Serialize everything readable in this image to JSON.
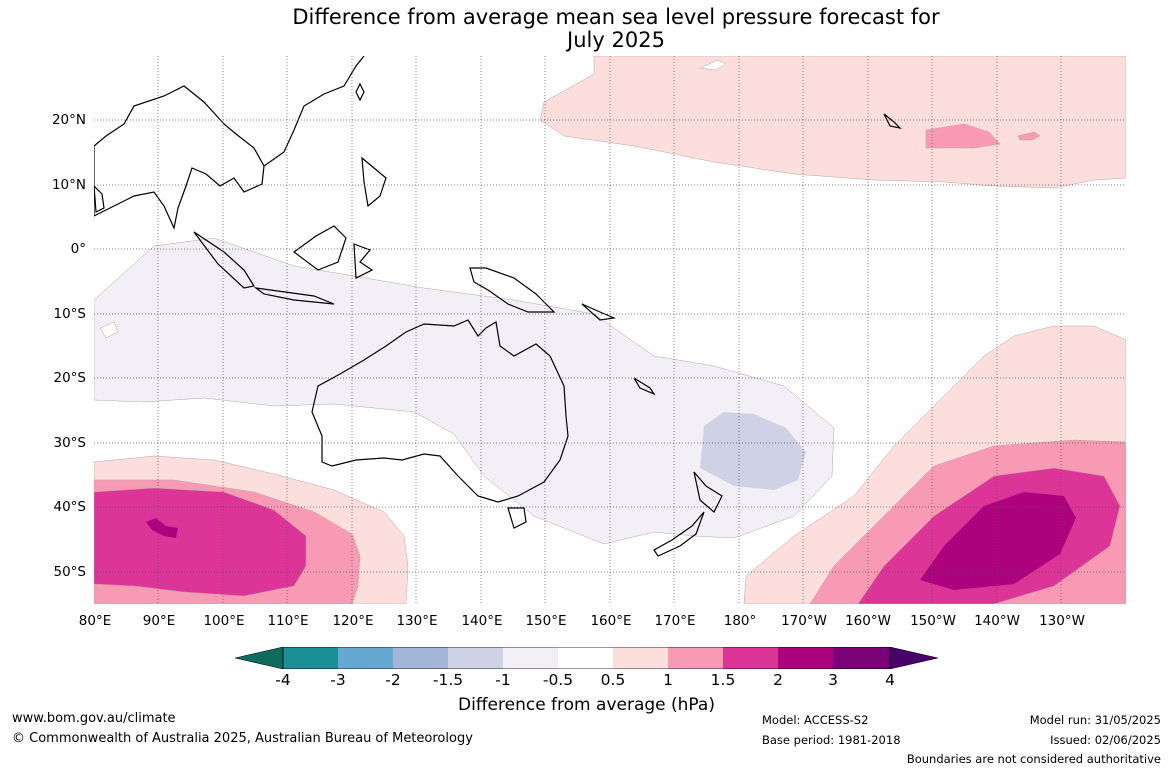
{
  "title": {
    "line1": "Difference from average mean sea level pressure forecast for",
    "line2": "July 2025"
  },
  "map": {
    "lat_labels": [
      "20°N",
      "10°N",
      "0°",
      "10°S",
      "20°S",
      "30°S",
      "40°S",
      "50°S"
    ],
    "lon_labels": [
      "80°E",
      "90°E",
      "100°E",
      "110°E",
      "120°E",
      "130°E",
      "140°E",
      "150°E",
      "160°E",
      "170°E",
      "180°",
      "170°W",
      "160°W",
      "150°W",
      "140°W",
      "130°W"
    ],
    "extent": {
      "lon_min": 80,
      "lon_max": 240,
      "lat_min": -55,
      "lat_max": 30
    },
    "colors": {
      "neg4": "#0e6b5e",
      "neg3": "#1a9096",
      "neg2": "#66a8d1",
      "neg1_5": "#a3b6d8",
      "neg1": "#cfd1e5",
      "neg0_5": "#f3eff6",
      "zero": "#ffffff",
      "pos0_5": "#fcdedd",
      "pos1": "#f99ab4",
      "pos1_5": "#dd3597",
      "pos2": "#ae017e",
      "pos3": "#7a0177",
      "pos4": "#49006a",
      "coast": "#000000",
      "border": "#888888",
      "grid": "#555555"
    }
  },
  "colorbar": {
    "ticks": [
      "-4",
      "-3",
      "-2",
      "-1.5",
      "-1",
      "-0.5",
      "0.5",
      "1",
      "1.5",
      "2",
      "3",
      "4"
    ],
    "label": "Difference from average (hPa)"
  },
  "footer": {
    "url": "www.bom.gov.au/climate",
    "copyright": "© Commonwealth of Australia 2025, Australian Bureau of Meteorology",
    "model": "Model: ACCESS-S2",
    "base_period": "Base period: 1981-2018",
    "model_run": "Model run: 31/05/2025",
    "issued": "Issued: 02/06/2025",
    "disclaimer": "Boundaries are not considered authoritative"
  }
}
